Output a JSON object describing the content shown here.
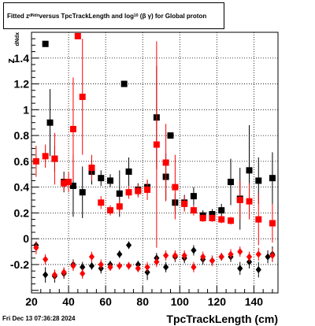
{
  "title": {
    "t1": "Fitted  z",
    "t1_sub": "dNdx",
    "t2": "  versus TpcTrackLength and log",
    "t2_sub": "10",
    "t3": "(β  γ) for Global proton"
  },
  "footer": "Fri Dec 13 07:36:28 2024",
  "chart_data": {
    "type": "scatter",
    "title": "Fitted z dNdx versus TpcTrackLength and log10(β γ) for Global proton",
    "xlabel": "TpcTrackLength (cm)",
    "ylabel": "z",
    "ylabel_sub": "dNdx",
    "xlim": [
      20,
      153
    ],
    "ylim": [
      -0.42,
      1.6
    ],
    "xticks": [
      20,
      40,
      60,
      80,
      100,
      120,
      140
    ],
    "yticks": [
      -0.2,
      0,
      0.2,
      0.4,
      0.6,
      0.8,
      1,
      1.2,
      1.4
    ],
    "grid": true,
    "colors": {
      "black": "#000000",
      "red": "#ff0000"
    },
    "series": [
      {
        "marker": "square",
        "color": "#000000",
        "points": [
          [
            27.5,
            1.51,
            0,
            0
          ],
          [
            30,
            0.9,
            0.26,
            0.26
          ],
          [
            32.5,
            0.62,
            0.1,
            0.1
          ],
          [
            37.5,
            0.44,
            0.08,
            0.08
          ],
          [
            42.5,
            0.41,
            0.24,
            0.24
          ],
          [
            47.5,
            0.36,
            0.2,
            0.2
          ],
          [
            52.5,
            0.52,
            0.1,
            0.1
          ],
          [
            57.5,
            0.47,
            0.06,
            0.06
          ],
          [
            62.5,
            0.45,
            0.05,
            0.05
          ],
          [
            67.5,
            0.35,
            0.18,
            0.18
          ],
          [
            70,
            1.2,
            0,
            0
          ],
          [
            72.5,
            0.52,
            0.11,
            0.11
          ],
          [
            77.5,
            0.38,
            0.05,
            0.05
          ],
          [
            82.5,
            0.4,
            0.05,
            0.05
          ],
          [
            87.5,
            0.94,
            0.4,
            0.4
          ],
          [
            92.5,
            0.48,
            0.18,
            0.18
          ],
          [
            95,
            0.8,
            0,
            0
          ],
          [
            97.5,
            0.28,
            0.07,
            0.07
          ],
          [
            102.5,
            0.28,
            0.06,
            0.06
          ],
          [
            107.5,
            0.33,
            0.07,
            0.07
          ],
          [
            112.5,
            0.18,
            0.04,
            0.04
          ],
          [
            117.5,
            0.19,
            0.04,
            0.04
          ],
          [
            122.5,
            0.22,
            0.05,
            0.05
          ],
          [
            127.5,
            0.44,
            0.18,
            0.18
          ],
          [
            132.5,
            0.31,
            0.24,
            0.24
          ],
          [
            137.5,
            0.53,
            0.35,
            0.35
          ],
          [
            142.5,
            0.45,
            0.18,
            0.18
          ],
          [
            150,
            0.47,
            0.2,
            0.2
          ]
        ]
      },
      {
        "marker": "square",
        "color": "#ff0000",
        "points": [
          [
            22.5,
            0.6,
            0.12,
            0.12
          ],
          [
            27.5,
            0.64,
            0.09,
            0.09
          ],
          [
            32.5,
            0.62,
            0.2,
            0.2
          ],
          [
            37.5,
            0.43,
            0.06,
            0.06
          ],
          [
            40,
            0.44,
            0.08,
            0.08
          ],
          [
            42.5,
            0.85,
            0.4,
            0.4
          ],
          [
            45,
            1.57,
            0,
            0
          ],
          [
            47.5,
            1.1,
            0.45,
            0.45
          ],
          [
            52.5,
            0.55,
            0.1,
            0.1
          ],
          [
            57.5,
            0.28,
            0.05,
            0.05
          ],
          [
            62.5,
            0.22,
            0.04,
            0.04
          ],
          [
            67.5,
            0.25,
            0.05,
            0.05
          ],
          [
            72.5,
            0.36,
            0.05,
            0.05
          ],
          [
            77.5,
            0.37,
            0.05,
            0.05
          ],
          [
            82.5,
            0.38,
            0.08,
            0.08
          ],
          [
            87.5,
            0.73,
            0.8,
            0.8
          ],
          [
            92.5,
            0.59,
            0.3,
            0.3
          ],
          [
            97.5,
            0.4,
            0.25,
            0.25
          ],
          [
            102.5,
            0.27,
            0.06,
            0.06
          ],
          [
            107.5,
            0.22,
            0.04,
            0.04
          ],
          [
            112.5,
            0.16,
            0.03,
            0.03
          ],
          [
            117.5,
            0.16,
            0.03,
            0.03
          ],
          [
            122.5,
            0.15,
            0.03,
            0.03
          ],
          [
            127.5,
            0.14,
            0.03,
            0.03
          ],
          [
            132.5,
            0.3,
            0.15,
            0.15
          ],
          [
            137.5,
            0.29,
            0.14,
            0.14
          ],
          [
            142.5,
            0.15,
            0.2,
            0.2
          ],
          [
            150,
            0.12,
            0.15,
            0.15
          ]
        ]
      },
      {
        "marker": "diamond",
        "color": "#000000",
        "points": [
          [
            22.5,
            -0.05,
            0,
            0
          ],
          [
            27.5,
            -0.28,
            0.06,
            0.06
          ],
          [
            32.5,
            -0.29,
            0.05,
            0.05
          ],
          [
            37.5,
            -0.27,
            0.04,
            0.04
          ],
          [
            42.5,
            -0.2,
            0.04,
            0.04
          ],
          [
            47.5,
            -0.22,
            0.04,
            0.04
          ],
          [
            52.5,
            -0.21,
            0.03,
            0.03
          ],
          [
            57.5,
            -0.23,
            0.04,
            0.04
          ],
          [
            62.5,
            -0.2,
            0.03,
            0.03
          ],
          [
            67.5,
            -0.12,
            0.03,
            0.03
          ],
          [
            72.5,
            -0.05,
            0.03,
            0.03
          ],
          [
            77.5,
            -0.2,
            0.03,
            0.03
          ],
          [
            82.5,
            -0.26,
            0.06,
            0.06
          ],
          [
            87.5,
            -0.15,
            0.04,
            0.04
          ],
          [
            92.5,
            -0.22,
            0.04,
            0.04
          ],
          [
            97.5,
            -0.14,
            0.04,
            0.04
          ],
          [
            102.5,
            -0.15,
            0.04,
            0.04
          ],
          [
            107.5,
            -0.09,
            0.04,
            0.04
          ],
          [
            112.5,
            -0.16,
            0.04,
            0.04
          ],
          [
            117.5,
            -0.17,
            0.04,
            0.04
          ],
          [
            122.5,
            -0.14,
            0.03,
            0.03
          ],
          [
            127.5,
            -0.14,
            0.04,
            0.04
          ],
          [
            132.5,
            -0.23,
            0.05,
            0.05
          ],
          [
            137.5,
            -0.18,
            0.05,
            0.05
          ],
          [
            142.5,
            -0.24,
            0.06,
            0.06
          ],
          [
            147.5,
            -0.14,
            0.05,
            0.05
          ],
          [
            150,
            -0.12,
            0.06,
            0.06
          ]
        ]
      },
      {
        "marker": "diamond",
        "color": "#ff0000",
        "points": [
          [
            22.5,
            -0.07,
            0.05,
            0.05
          ],
          [
            27.5,
            -0.16,
            0.04,
            0.04
          ],
          [
            32.5,
            -0.28,
            0.04,
            0.04
          ],
          [
            37.5,
            -0.26,
            0.04,
            0.04
          ],
          [
            42.5,
            -0.21,
            0.04,
            0.04
          ],
          [
            47.5,
            -0.27,
            0.04,
            0.04
          ],
          [
            52.5,
            -0.14,
            0.04,
            0.04
          ],
          [
            57.5,
            -0.2,
            0.04,
            0.04
          ],
          [
            62.5,
            -0.22,
            0.03,
            0.03
          ],
          [
            67.5,
            -0.21,
            0.03,
            0.03
          ],
          [
            72.5,
            -0.21,
            0.03,
            0.03
          ],
          [
            77.5,
            -0.23,
            0.03,
            0.03
          ],
          [
            82.5,
            -0.22,
            0.04,
            0.04
          ],
          [
            87.5,
            -0.18,
            0.04,
            0.04
          ],
          [
            92.5,
            -0.13,
            0.04,
            0.04
          ],
          [
            97.5,
            -0.13,
            0.04,
            0.04
          ],
          [
            102.5,
            -0.13,
            0.04,
            0.04
          ],
          [
            107.5,
            -0.22,
            0.04,
            0.04
          ],
          [
            112.5,
            -0.14,
            0.04,
            0.04
          ],
          [
            117.5,
            -0.17,
            0.04,
            0.04
          ],
          [
            122.5,
            -0.14,
            0.03,
            0.03
          ],
          [
            127.5,
            -0.12,
            0.04,
            0.04
          ],
          [
            132.5,
            -0.1,
            0.04,
            0.04
          ],
          [
            137.5,
            -0.14,
            0.04,
            0.04
          ],
          [
            142.5,
            -0.12,
            0.05,
            0.05
          ],
          [
            150,
            -0.13,
            0.05,
            0.05
          ]
        ]
      }
    ]
  }
}
